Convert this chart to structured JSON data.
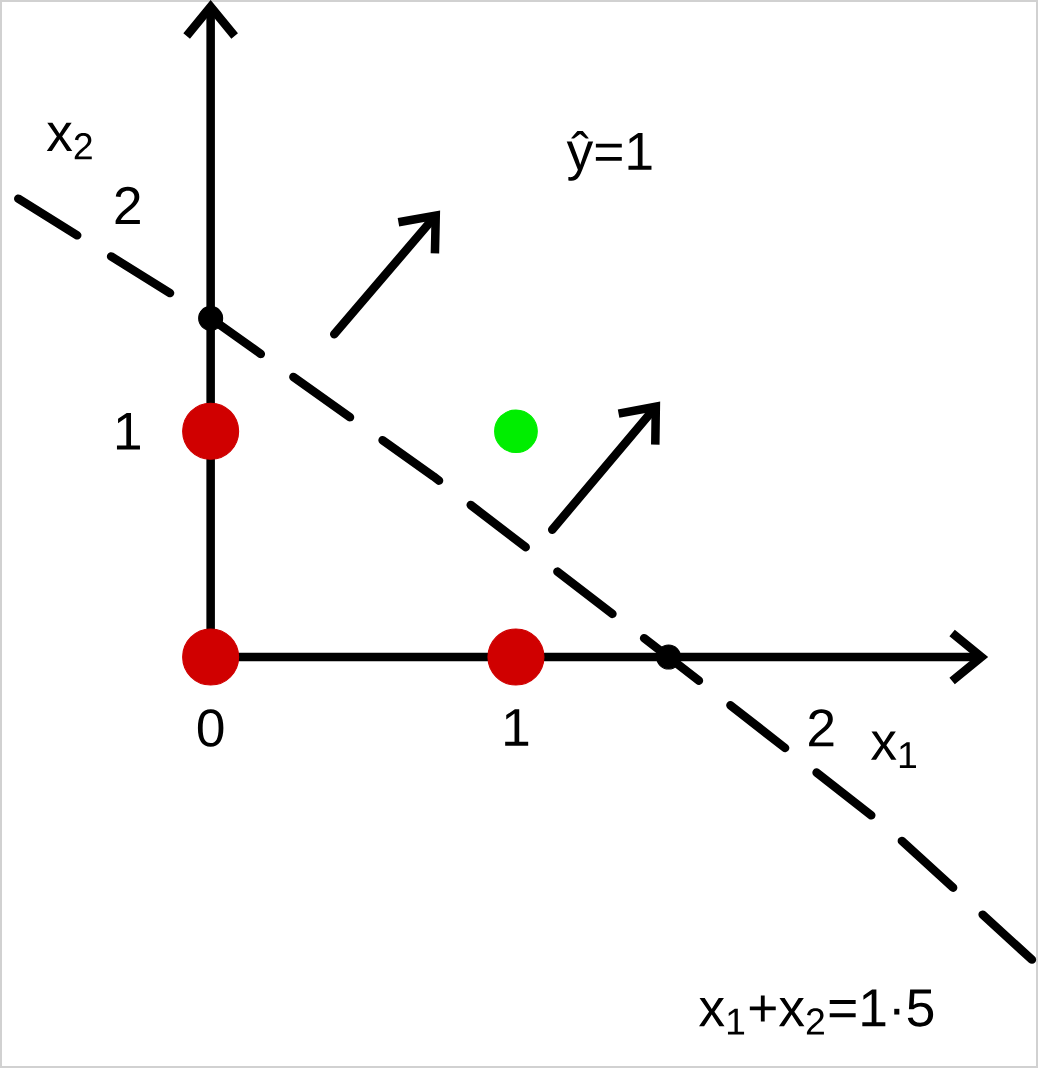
{
  "chart_data": {
    "type": "scatter",
    "xlabel": "x$_{1}$",
    "ylabel": "x$_{2}$",
    "annotations": [
      "ŷ=1"
    ],
    "xlim": [
      -0.69,
      2.71
    ],
    "ylim": [
      -1.82,
      2.91
    ],
    "xticks": [
      0,
      1,
      2
    ],
    "yticks": [
      1,
      2
    ],
    "marker": "circle",
    "series": [
      {
        "color": "#d00000",
        "x": [
          0,
          1,
          0
        ],
        "values": [
          0,
          0,
          1
        ]
      },
      {
        "color": "#00ee00",
        "x": [
          1
        ],
        "values": [
          1
        ]
      },
      {
        "color": "#000000",
        "x": [
          0,
          1.5
        ],
        "values": [
          1.5,
          0
        ]
      },
      {
        "type": "line",
        "name": "x$_{1}$+x$_{2}$=1·5",
        "color": "#000000",
        "line_style": "dashed",
        "marker": "none",
        "x": [
          -0.63,
          0,
          0.73,
          1.5,
          2.22,
          2.69
        ],
        "values": [
          2.03,
          1.5,
          0.8,
          0,
          -0.76,
          -1.34
        ]
      }
    ]
  }
}
